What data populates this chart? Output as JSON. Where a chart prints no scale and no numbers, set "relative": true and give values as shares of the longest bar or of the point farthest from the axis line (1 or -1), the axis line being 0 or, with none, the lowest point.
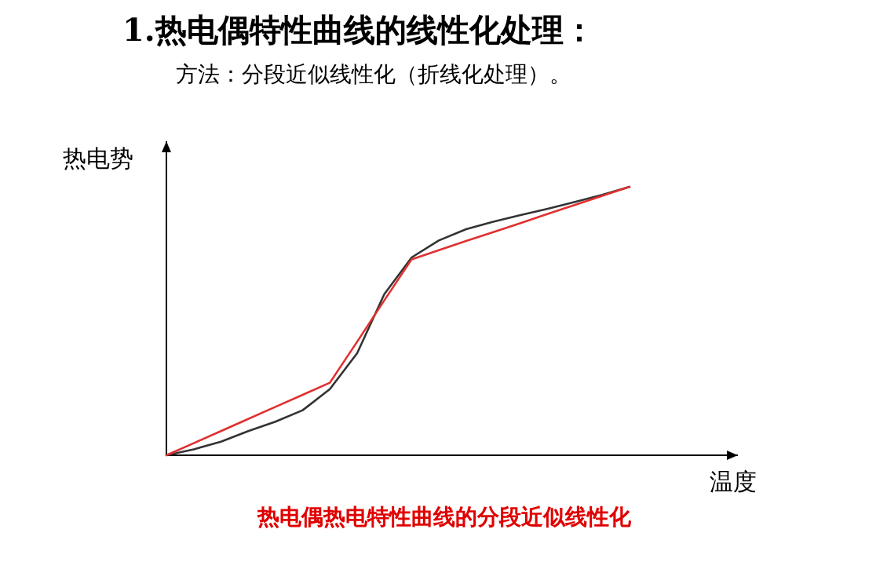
{
  "chart_data": {
    "type": "line",
    "title": "1.热电偶特性曲线的线性化处理：",
    "subtitle": "方法：分段近似线性化（折线化处理）。",
    "xlabel": "温度",
    "ylabel": "热电势",
    "annotations": [
      "热电偶热电特性曲线的分段近似线性化"
    ],
    "relative": true,
    "marker": "none",
    "line_style": "solid",
    "categories": [
      null,
      null,
      null,
      null,
      null,
      null,
      null,
      null,
      null,
      null,
      null,
      null,
      null,
      null,
      null,
      null,
      null,
      null
    ],
    "series": [
      {
        "color": "#333333",
        "values": [
          0,
          0.022,
          0.05,
          0.09,
          0.125,
          0.168,
          0.246,
          0.38,
          0.6,
          0.737,
          0.8,
          0.842,
          0.87,
          0.895,
          0.918,
          0.944,
          0.97,
          1
        ]
      },
      {
        "color": "#e03030",
        "values": [
          0,
          0.045,
          0.09,
          0.135,
          0.18,
          0.225,
          0.27,
          0.423,
          0.577,
          0.73,
          0.764,
          0.798,
          0.831,
          0.865,
          0.899,
          0.933,
          0.966,
          1
        ]
      }
    ]
  }
}
